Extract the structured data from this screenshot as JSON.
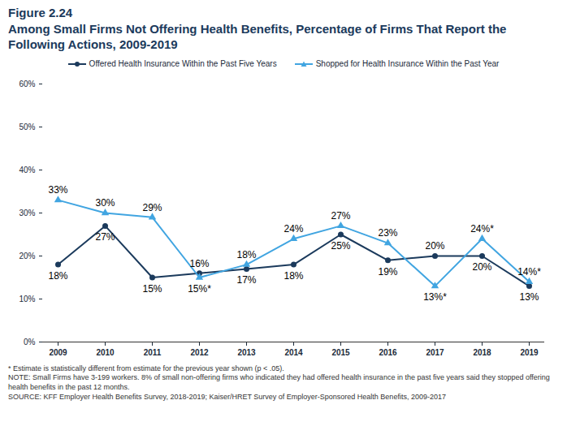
{
  "chart_data": {
    "type": "line",
    "title": "Figure 2.24",
    "subtitle": "Among Small Firms Not Offering Health Benefits, Percentage of Firms That Report the Following Actions, 2009-2019",
    "categories": [
      "2009",
      "2010",
      "2011",
      "2012",
      "2013",
      "2014",
      "2015",
      "2016",
      "2017",
      "2018",
      "2019"
    ],
    "series": [
      {
        "name": "Offered Health Insurance Within the Past Five Years",
        "color": "#1b3a5c",
        "marker": "circle",
        "line_style": "solid",
        "values": [
          18,
          27,
          15,
          16,
          17,
          18,
          25,
          19,
          20,
          20,
          13
        ],
        "value_labels": [
          "18%",
          "27%",
          "15%",
          "16%",
          "17%",
          "18%",
          "25%",
          "19%",
          "20%",
          "20%",
          "13%"
        ]
      },
      {
        "name": "Shopped for Health Insurance Within the Past Year",
        "color": "#41a5e1",
        "marker": "triangle",
        "line_style": "solid",
        "values": [
          33,
          30,
          29,
          15,
          18,
          24,
          27,
          23,
          13,
          24,
          14
        ],
        "value_labels": [
          "33%",
          "30%",
          "29%",
          "15%*",
          "18%",
          "24%",
          "27%",
          "23%",
          "13%*",
          "24%*",
          "14%*"
        ]
      }
    ],
    "ylim": [
      0,
      60
    ],
    "yticks": [
      {
        "value": 0,
        "label": "0%"
      },
      {
        "value": 10,
        "label": "10%"
      },
      {
        "value": 20,
        "label": "20%"
      },
      {
        "value": 30,
        "label": "30%"
      },
      {
        "value": 40,
        "label": "40%"
      },
      {
        "value": 50,
        "label": "50%"
      },
      {
        "value": 60,
        "label": "60%"
      }
    ],
    "grid": false,
    "legend": "top",
    "data_labels": true,
    "notes": [
      "* Estimate is statistically different from estimate for the previous year shown (p < .05).",
      "NOTE: Small Firms have 3-199 workers. 8% of small non-offering firms who indicated they had offered health insurance in the past five years said they stopped offering health benefits in the past 12 months.",
      "SOURCE: KFF Employer Health Benefits Survey, 2018-2019; Kaiser/HRET Survey of Employer-Sponsored Health Benefits, 2009-2017"
    ]
  }
}
